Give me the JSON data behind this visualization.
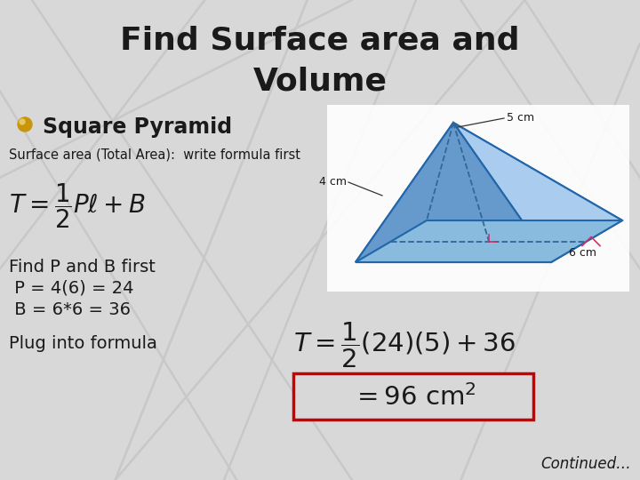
{
  "title_line1": "Find Surface area and",
  "title_line2": "Volume",
  "subtitle": "Square Pyramid",
  "surface_area_label": "Surface area (Total Area):  write formula first",
  "find_pb": "Find P and B first",
  "p_eq": " P = 4(6) = 24",
  "b_eq": " B = 6*6 = 36",
  "plug": "Plug into formula",
  "continued": "Continued…",
  "bg_color": "#d8d8d8",
  "title_color": "#1a1a1a",
  "text_color": "#1a1a1a",
  "result_box_color": "#cc0000",
  "bullet_color": "#c8960c",
  "pyramid_label_5cm": "5 cm",
  "pyramid_label_4cm": "4 cm",
  "pyramid_label_6cm": "6 cm",
  "diag_lines": [
    [
      [
        0,
        0.19
      ],
      [
        0.37,
        1.0
      ]
    ],
    [
      [
        0.05,
        0.0
      ],
      [
        0.55,
        1.0
      ]
    ],
    [
      [
        0.32,
        0.0
      ],
      [
        0.0,
        0.56
      ]
    ],
    [
      [
        0.48,
        0.0
      ],
      [
        0.18,
        1.0
      ]
    ],
    [
      [
        0.65,
        0.0
      ],
      [
        0.35,
        1.0
      ]
    ],
    [
      [
        0.72,
        0.0
      ],
      [
        1.0,
        0.56
      ]
    ],
    [
      [
        0.82,
        0.0
      ],
      [
        1.0,
        0.37
      ]
    ],
    [
      [
        1.0,
        0.09
      ],
      [
        0.72,
        1.0
      ]
    ],
    [
      [
        0.0,
        0.37
      ],
      [
        0.55,
        0.0
      ]
    ],
    [
      [
        0.18,
        1.0
      ],
      [
        0.82,
        0.0
      ]
    ]
  ]
}
